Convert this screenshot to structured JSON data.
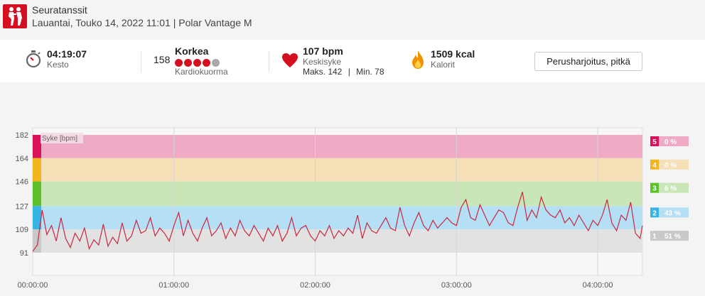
{
  "header": {
    "title": "Seuratanssit",
    "subtitle": "Lauantai, Touko 14, 2022 11:01 | Polar Vantage M",
    "sport_icon": "dancing-couple-icon",
    "accent": "#d50f1f"
  },
  "stats": {
    "duration": {
      "value": "04:19:07",
      "label": "Kesto",
      "icon": "stopwatch-icon"
    },
    "cardio_load": {
      "value": "158",
      "level": "Korkea",
      "label": "Kardiokuorma",
      "dots_filled": 4,
      "dots_total": 5
    },
    "heart_rate": {
      "value": "107 bpm",
      "label": "Keskisyke",
      "max": "Maks. 142",
      "min": "Min. 78",
      "separator": "|",
      "icon": "heart-icon"
    },
    "calories": {
      "value": "1509 kcal",
      "label": "Kalorit",
      "icon": "flame-icon"
    },
    "training_benefit": "Perusharjoitus, pitkä"
  },
  "chart_data": {
    "type": "line",
    "series_label": "Syke [bpm]",
    "y_ticks": [
      "182",
      "164",
      "146",
      "127",
      "109",
      "91"
    ],
    "x_ticks": [
      "00:00:00",
      "01:00:00",
      "02:00:00",
      "03:00:00",
      "04:00:00"
    ],
    "xlim_min": [
      0,
      259
    ],
    "zones": [
      {
        "zone": "5",
        "from": 164,
        "to": 182,
        "percent": "0 %",
        "color": "#d8115a",
        "band": "#efaac6"
      },
      {
        "zone": "4",
        "from": 146,
        "to": 164,
        "percent": "0 %",
        "color": "#f3b51c",
        "band": "#f5e0b7"
      },
      {
        "zone": "3",
        "from": 127,
        "to": 146,
        "percent": "6 %",
        "color": "#5cc12a",
        "band": "#c9e6b7"
      },
      {
        "zone": "2",
        "from": 109,
        "to": 127,
        "percent": "43 %",
        "color": "#37b4e6",
        "band": "#b5dff4"
      },
      {
        "zone": "1",
        "from": 91,
        "to": 109,
        "percent": "51 %",
        "color": "#c9c9c9",
        "band": "#e2e2e2"
      }
    ],
    "line_color": "#c82841",
    "heart_rate_points": [
      [
        0,
        92
      ],
      [
        2,
        97
      ],
      [
        4,
        124
      ],
      [
        6,
        105
      ],
      [
        8,
        112
      ],
      [
        10,
        100
      ],
      [
        12,
        118
      ],
      [
        14,
        102
      ],
      [
        16,
        95
      ],
      [
        18,
        106
      ],
      [
        20,
        100
      ],
      [
        22,
        110
      ],
      [
        24,
        94
      ],
      [
        26,
        101
      ],
      [
        28,
        97
      ],
      [
        30,
        113
      ],
      [
        32,
        96
      ],
      [
        34,
        103
      ],
      [
        36,
        98
      ],
      [
        38,
        114
      ],
      [
        40,
        100
      ],
      [
        42,
        104
      ],
      [
        44,
        116
      ],
      [
        46,
        106
      ],
      [
        48,
        108
      ],
      [
        50,
        118
      ],
      [
        52,
        104
      ],
      [
        54,
        110
      ],
      [
        56,
        106
      ],
      [
        58,
        100
      ],
      [
        60,
        112
      ],
      [
        62,
        122
      ],
      [
        64,
        104
      ],
      [
        66,
        116
      ],
      [
        68,
        106
      ],
      [
        70,
        100
      ],
      [
        72,
        110
      ],
      [
        74,
        118
      ],
      [
        76,
        104
      ],
      [
        78,
        108
      ],
      [
        80,
        114
      ],
      [
        82,
        102
      ],
      [
        84,
        110
      ],
      [
        86,
        104
      ],
      [
        88,
        116
      ],
      [
        90,
        108
      ],
      [
        92,
        104
      ],
      [
        94,
        112
      ],
      [
        96,
        106
      ],
      [
        98,
        100
      ],
      [
        100,
        110
      ],
      [
        102,
        104
      ],
      [
        104,
        112
      ],
      [
        106,
        100
      ],
      [
        108,
        106
      ],
      [
        110,
        118
      ],
      [
        112,
        104
      ],
      [
        114,
        110
      ],
      [
        116,
        112
      ],
      [
        118,
        104
      ],
      [
        120,
        100
      ],
      [
        122,
        108
      ],
      [
        124,
        104
      ],
      [
        126,
        112
      ],
      [
        128,
        102
      ],
      [
        130,
        108
      ],
      [
        132,
        104
      ],
      [
        134,
        110
      ],
      [
        136,
        106
      ],
      [
        138,
        120
      ],
      [
        140,
        102
      ],
      [
        142,
        114
      ],
      [
        144,
        108
      ],
      [
        146,
        106
      ],
      [
        148,
        112
      ],
      [
        150,
        118
      ],
      [
        152,
        110
      ],
      [
        154,
        108
      ],
      [
        156,
        126
      ],
      [
        158,
        112
      ],
      [
        160,
        104
      ],
      [
        162,
        114
      ],
      [
        164,
        122
      ],
      [
        166,
        112
      ],
      [
        168,
        108
      ],
      [
        170,
        116
      ],
      [
        172,
        110
      ],
      [
        174,
        114
      ],
      [
        176,
        118
      ],
      [
        178,
        114
      ],
      [
        180,
        112
      ],
      [
        182,
        126
      ],
      [
        184,
        132
      ],
      [
        186,
        118
      ],
      [
        188,
        116
      ],
      [
        190,
        128
      ],
      [
        192,
        120
      ],
      [
        194,
        112
      ],
      [
        196,
        118
      ],
      [
        198,
        124
      ],
      [
        200,
        122
      ],
      [
        202,
        114
      ],
      [
        204,
        112
      ],
      [
        206,
        126
      ],
      [
        208,
        138
      ],
      [
        210,
        116
      ],
      [
        212,
        124
      ],
      [
        214,
        118
      ],
      [
        216,
        134
      ],
      [
        218,
        124
      ],
      [
        220,
        120
      ],
      [
        222,
        118
      ],
      [
        224,
        124
      ],
      [
        226,
        114
      ],
      [
        228,
        118
      ],
      [
        230,
        112
      ],
      [
        232,
        120
      ],
      [
        234,
        114
      ],
      [
        236,
        108
      ],
      [
        238,
        116
      ],
      [
        240,
        112
      ],
      [
        242,
        120
      ],
      [
        244,
        132
      ],
      [
        246,
        114
      ],
      [
        248,
        108
      ],
      [
        250,
        120
      ],
      [
        252,
        116
      ],
      [
        254,
        130
      ],
      [
        256,
        106
      ],
      [
        258,
        102
      ],
      [
        259,
        112
      ]
    ]
  }
}
